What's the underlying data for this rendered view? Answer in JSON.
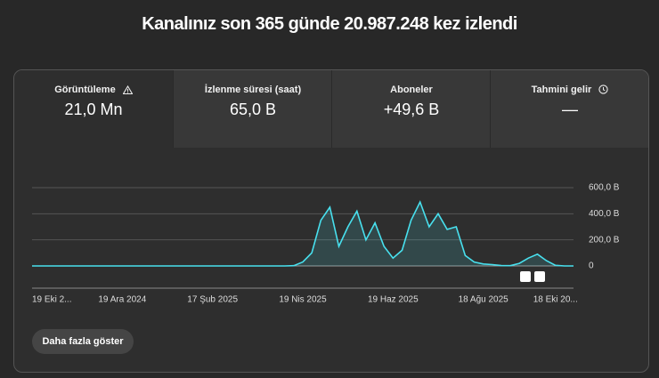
{
  "header": {
    "title": "Kanalınız son 365 günde 20.987.248 kez izlendi"
  },
  "tabs": [
    {
      "label": "Görüntüleme",
      "value": "21,0 Mn"
    },
    {
      "label": "İzlenme süresi (saat)",
      "value": "65,0 B"
    },
    {
      "label": "Aboneler",
      "value": "+49,6 B"
    },
    {
      "label": "Tahmini gelir",
      "value": "—"
    }
  ],
  "chart_data": {
    "type": "line",
    "color": "#48e0ee",
    "grid": true,
    "categories": [
      "19 Eki 2...",
      null,
      null,
      null,
      null,
      null,
      null,
      null,
      null,
      null,
      "19 Ara 2024",
      null,
      null,
      null,
      null,
      null,
      null,
      null,
      null,
      null,
      "17 Şub 2025",
      null,
      null,
      null,
      null,
      null,
      null,
      null,
      null,
      null,
      "19 Nis 2025",
      null,
      null,
      null,
      null,
      null,
      null,
      null,
      null,
      null,
      "19 Haz 2025",
      null,
      null,
      null,
      null,
      null,
      null,
      null,
      null,
      null,
      "18 Ağu 2025",
      null,
      null,
      null,
      null,
      null,
      null,
      null,
      "18 Eki 20...",
      null,
      null
    ],
    "values": [
      0,
      0,
      0,
      0,
      0,
      0,
      0,
      0,
      0,
      0,
      0,
      0,
      0,
      0,
      0,
      0,
      0,
      0,
      0,
      0,
      0,
      0,
      0,
      0,
      0,
      0,
      0,
      0,
      0,
      2000,
      30000,
      100000,
      350000,
      450000,
      150000,
      300000,
      420000,
      200000,
      330000,
      150000,
      60000,
      120000,
      350000,
      490000,
      300000,
      400000,
      280000,
      300000,
      80000,
      30000,
      15000,
      10000,
      3000,
      2000,
      20000,
      60000,
      90000,
      40000,
      5000,
      0,
      0
    ],
    "ylim": [
      0,
      600000
    ],
    "yticks": [
      0,
      {
        "value": 200000,
        "label": "200,0 B"
      },
      {
        "value": 400000,
        "label": "400,0 B"
      },
      {
        "value": 600000,
        "label": "600,0 B"
      }
    ]
  },
  "button": {
    "label": "Daha fazla göster"
  }
}
